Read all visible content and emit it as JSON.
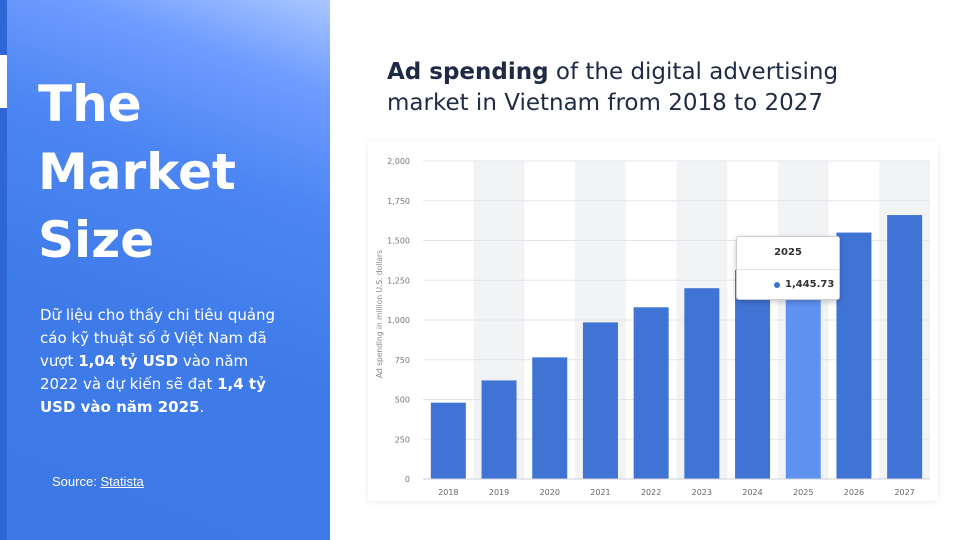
{
  "panel": {
    "title_lines": [
      "The",
      "Market",
      "Size"
    ],
    "description": {
      "part1": "Dữ liệu cho thấy chi tiêu quảng cáo kỹ thuật số ở Việt Nam đã vượt ",
      "bold1": "1,04 tỷ USD",
      "part2": " vào năm 2022 và dự kiến sẽ đạt ",
      "bold2": "1,4 tỷ USD vào năm 2025",
      "part3": "."
    },
    "source_label": "Source:",
    "source_link": "Statista"
  },
  "chart_heading": {
    "bold": "Ad spending",
    "rest": " of the digital advertising market in Vietnam from 2018 to 2027"
  },
  "tooltip": {
    "year": "2025",
    "value": "1,445.73"
  },
  "colors": {
    "bar": "#3f73d4",
    "bar_highlight": "#5f91f0",
    "band": "#f2f3f5",
    "panel_accent": "#3c78e6"
  },
  "chart_data": {
    "type": "bar",
    "categories": [
      "2018",
      "2019",
      "2020",
      "2021",
      "2022",
      "2023",
      "2024",
      "2025",
      "2026",
      "2027"
    ],
    "values": [
      480,
      620,
      765,
      985,
      1080,
      1200,
      1315,
      1445.73,
      1550,
      1660
    ],
    "highlight_index": 7,
    "ylabel": "Ad spending in million U.S. dollars",
    "xlabel": "",
    "ylim": [
      0,
      2000
    ],
    "yticks": [
      0,
      250,
      500,
      750,
      1000,
      1250,
      1500,
      1750,
      2000
    ],
    "ytick_labels": [
      "0",
      "250",
      "500",
      "750",
      "1,000",
      "1,250",
      "1,500",
      "1,750",
      "2,000"
    ],
    "grid": true
  }
}
